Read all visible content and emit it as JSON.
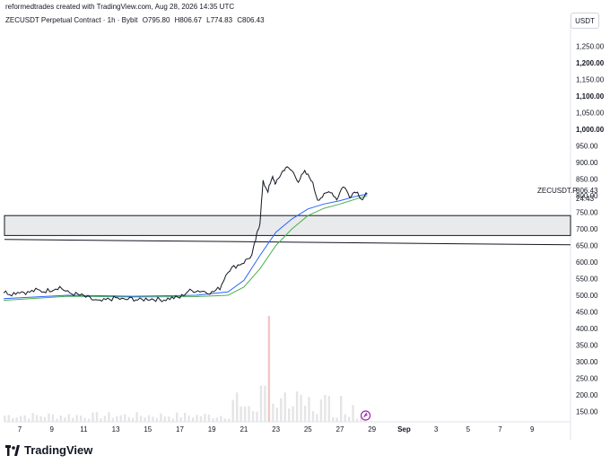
{
  "header": {
    "created_by": "reformedtrades created with TradingView.com, Aug 28, 2026 14:35 UTC",
    "symbol_title": "ZECUSDT Perpetual Contract · 1h · Bybit",
    "ohlc": {
      "open": "O795.80",
      "high": "H806.67",
      "low": "L774.83",
      "close": "C806.43"
    }
  },
  "currency_button": "USDT",
  "brand": "TradingView",
  "price_label": {
    "symbol": "ZECUSDT.P",
    "price": "806.43",
    "countdown": "24:43"
  },
  "colors": {
    "candle": "#131722",
    "ma_fast": "#2962ff",
    "ma_slow": "#4caf50",
    "zone_fill": "#e9eaeb",
    "line": "#131722",
    "volume": "#e5e5e5",
    "volume_tall": "#f4c6c6"
  },
  "chart_data": {
    "type": "line",
    "title": "ZECUSDT Perpetual Contract · 1h · Bybit",
    "x_labels": [
      "7",
      "9",
      "11",
      "13",
      "15",
      "17",
      "19",
      "21",
      "23",
      "25",
      "27",
      "29",
      "Sep",
      "3",
      "5",
      "7",
      "9"
    ],
    "y_ticks": [
      150,
      200,
      250,
      300,
      350,
      400,
      450,
      500,
      550,
      600,
      650,
      700,
      750,
      800,
      850,
      900,
      950,
      1000,
      1050,
      1100,
      1150,
      1200,
      1250
    ],
    "y_tick_labels": [
      "150.00",
      "200.00",
      "250.00",
      "300.00",
      "350.00",
      "400.00",
      "450.00",
      "500.00",
      "550.00",
      "600.00",
      "650.00",
      "700.00",
      "750.00",
      "800.00",
      "850.00",
      "900.00",
      "950.00",
      "1,000.00",
      "1,050.00",
      "1,100.00",
      "1,150.00",
      "1,200.00",
      "1,250.00"
    ],
    "bold_ticks": [
      1000,
      1100,
      1200
    ],
    "price_path": [
      {
        "day": 6,
        "price": 510
      },
      {
        "day": 6.5,
        "price": 505
      },
      {
        "day": 7,
        "price": 512
      },
      {
        "day": 7.5,
        "price": 508
      },
      {
        "day": 8,
        "price": 515
      },
      {
        "day": 8.5,
        "price": 512
      },
      {
        "day": 9,
        "price": 518
      },
      {
        "day": 9.5,
        "price": 525
      },
      {
        "day": 10,
        "price": 508
      },
      {
        "day": 10.5,
        "price": 503
      },
      {
        "day": 11,
        "price": 497
      },
      {
        "day": 11.5,
        "price": 488
      },
      {
        "day": 12,
        "price": 480
      },
      {
        "day": 12.5,
        "price": 487
      },
      {
        "day": 13,
        "price": 492
      },
      {
        "day": 13.5,
        "price": 486
      },
      {
        "day": 14,
        "price": 490
      },
      {
        "day": 14.5,
        "price": 485
      },
      {
        "day": 15,
        "price": 490
      },
      {
        "day": 15.5,
        "price": 488
      },
      {
        "day": 16,
        "price": 487
      },
      {
        "day": 16.5,
        "price": 492
      },
      {
        "day": 17,
        "price": 493
      },
      {
        "day": 17.5,
        "price": 512
      },
      {
        "day": 18,
        "price": 515
      },
      {
        "day": 18.5,
        "price": 512
      },
      {
        "day": 19,
        "price": 508
      },
      {
        "day": 19.5,
        "price": 522
      },
      {
        "day": 20,
        "price": 575
      },
      {
        "day": 20.5,
        "price": 588
      },
      {
        "day": 21,
        "price": 600
      },
      {
        "day": 21.5,
        "price": 620
      },
      {
        "day": 21.8,
        "price": 680
      },
      {
        "day": 22,
        "price": 720
      },
      {
        "day": 22.2,
        "price": 840
      },
      {
        "day": 22.5,
        "price": 815
      },
      {
        "day": 22.8,
        "price": 855
      },
      {
        "day": 23,
        "price": 835
      },
      {
        "day": 23.3,
        "price": 865
      },
      {
        "day": 23.6,
        "price": 885
      },
      {
        "day": 24,
        "price": 875
      },
      {
        "day": 24.4,
        "price": 845
      },
      {
        "day": 24.8,
        "price": 870
      },
      {
        "day": 25.2,
        "price": 850
      },
      {
        "day": 25.6,
        "price": 790
      },
      {
        "day": 26,
        "price": 800
      },
      {
        "day": 26.4,
        "price": 815
      },
      {
        "day": 26.8,
        "price": 790
      },
      {
        "day": 27.2,
        "price": 830
      },
      {
        "day": 27.6,
        "price": 800
      },
      {
        "day": 28,
        "price": 815
      },
      {
        "day": 28.4,
        "price": 790
      },
      {
        "day": 28.7,
        "price": 806
      }
    ],
    "ma_fast": [
      {
        "day": 6,
        "price": 490
      },
      {
        "day": 10,
        "price": 500
      },
      {
        "day": 14,
        "price": 497
      },
      {
        "day": 18,
        "price": 500
      },
      {
        "day": 20,
        "price": 510
      },
      {
        "day": 21,
        "price": 545
      },
      {
        "day": 22,
        "price": 620
      },
      {
        "day": 23,
        "price": 690
      },
      {
        "day": 24,
        "price": 730
      },
      {
        "day": 25,
        "price": 760
      },
      {
        "day": 26,
        "price": 775
      },
      {
        "day": 27,
        "price": 785
      },
      {
        "day": 28,
        "price": 798
      },
      {
        "day": 28.7,
        "price": 805
      }
    ],
    "ma_slow": [
      {
        "day": 6,
        "price": 485
      },
      {
        "day": 10,
        "price": 497
      },
      {
        "day": 14,
        "price": 495
      },
      {
        "day": 18,
        "price": 496
      },
      {
        "day": 20,
        "price": 500
      },
      {
        "day": 21,
        "price": 525
      },
      {
        "day": 22,
        "price": 580
      },
      {
        "day": 23,
        "price": 650
      },
      {
        "day": 24,
        "price": 700
      },
      {
        "day": 25,
        "price": 740
      },
      {
        "day": 26,
        "price": 762
      },
      {
        "day": 27,
        "price": 775
      },
      {
        "day": 28,
        "price": 790
      },
      {
        "day": 28.7,
        "price": 800
      }
    ],
    "zone": {
      "top": 740,
      "bottom": 680
    },
    "horizontal_line": 660,
    "volume_note": "relative volume bars at bottom"
  }
}
